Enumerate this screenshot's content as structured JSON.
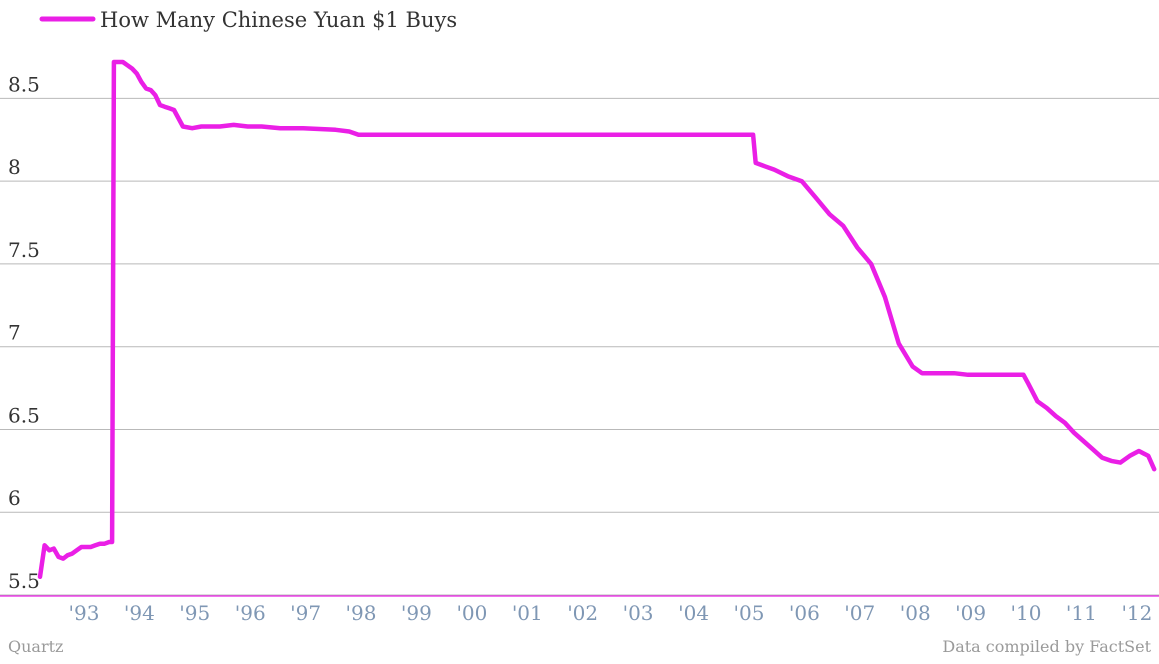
{
  "colors": {
    "series": "#ea1fe6",
    "grid": "#b9b9b9",
    "axis_line": "#ea1fe6",
    "ytick_text": "#333333",
    "xtick_text": "#7f97b4",
    "credit_text": "#9a9a9a"
  },
  "footer": {
    "left": "Quartz",
    "right": "Data compiled by FactSet"
  },
  "chart_data": {
    "type": "line",
    "title": "",
    "xlabel": "",
    "ylabel": "",
    "ylim": [
      5.5,
      8.75
    ],
    "xlim": [
      "1992-09-01",
      "2012-10-15"
    ],
    "grid": true,
    "legend_position": "top-left",
    "yticks": [
      5.5,
      6,
      6.5,
      7,
      7.5,
      8,
      8.5
    ],
    "ytick_labels": [
      "5.5",
      "6",
      "6.5",
      "7",
      "7.5",
      "8",
      "8.5"
    ],
    "xticks": [
      "1993-01-01",
      "1994-01-01",
      "1995-01-01",
      "1996-01-01",
      "1997-01-01",
      "1998-01-01",
      "1999-01-01",
      "2000-01-01",
      "2001-01-01",
      "2002-01-01",
      "2003-01-01",
      "2004-01-01",
      "2005-01-01",
      "2006-01-01",
      "2007-01-01",
      "2008-01-01",
      "2009-01-01",
      "2010-01-01",
      "2011-01-01",
      "2012-01-01"
    ],
    "xtick_labels": [
      "'93",
      "'94",
      "'95",
      "'96",
      "'97",
      "'98",
      "'99",
      "'00",
      "'01",
      "'02",
      "'03",
      "'04",
      "'05",
      "'06",
      "'07",
      "'08",
      "'09",
      "'10",
      "'11",
      "'12"
    ],
    "series": [
      {
        "name": "How Many Chinese Yuan $1 Buys",
        "x": [
          "1992-09-01",
          "1992-10-01",
          "1992-11-01",
          "1992-12-01",
          "1993-01-01",
          "1993-02-01",
          "1993-03-01",
          "1993-04-01",
          "1993-05-01",
          "1993-06-01",
          "1993-07-01",
          "1993-08-01",
          "1993-09-01",
          "1993-10-01",
          "1993-11-01",
          "1993-12-01",
          "1993-12-20",
          "1994-01-01",
          "1994-02-01",
          "1994-03-01",
          "1994-04-01",
          "1994-05-01",
          "1994-06-01",
          "1994-07-01",
          "1994-08-01",
          "1994-09-01",
          "1994-10-01",
          "1994-11-01",
          "1994-12-01",
          "1995-01-01",
          "1995-02-01",
          "1995-04-01",
          "1995-06-01",
          "1995-08-01",
          "1995-10-01",
          "1995-12-01",
          "1996-03-01",
          "1996-06-01",
          "1996-09-01",
          "1997-01-01",
          "1997-06-01",
          "1998-01-01",
          "1998-04-01",
          "1998-06-01",
          "1998-12-01",
          "2000-01-01",
          "2002-01-01",
          "2004-01-01",
          "2005-07-15",
          "2005-08-01",
          "2005-09-01",
          "2005-10-01",
          "2005-12-01",
          "2006-03-01",
          "2006-06-01",
          "2006-09-01",
          "2006-12-01",
          "2007-03-01",
          "2007-06-01",
          "2007-09-01",
          "2007-12-01",
          "2008-03-01",
          "2008-06-01",
          "2008-08-01",
          "2008-10-01",
          "2008-12-01",
          "2009-03-01",
          "2009-06-01",
          "2009-09-01",
          "2009-12-01",
          "2010-03-01",
          "2010-06-01",
          "2010-07-01",
          "2010-09-01",
          "2010-11-01",
          "2011-01-01",
          "2011-03-01",
          "2011-05-01",
          "2011-07-01",
          "2011-09-01",
          "2011-11-01",
          "2012-01-01",
          "2012-03-01",
          "2012-05-01",
          "2012-07-01",
          "2012-09-01",
          "2012-10-10"
        ],
        "y": [
          5.61,
          5.8,
          5.77,
          5.78,
          5.73,
          5.72,
          5.74,
          5.75,
          5.77,
          5.79,
          5.79,
          5.79,
          5.8,
          5.81,
          5.81,
          5.82,
          5.82,
          8.72,
          8.72,
          8.72,
          8.7,
          8.68,
          8.65,
          8.6,
          8.56,
          8.55,
          8.52,
          8.46,
          8.45,
          8.44,
          8.43,
          8.33,
          8.32,
          8.33,
          8.33,
          8.33,
          8.34,
          8.33,
          8.33,
          8.32,
          8.32,
          8.31,
          8.3,
          8.28,
          8.28,
          8.28,
          8.28,
          8.28,
          8.28,
          8.11,
          8.1,
          8.09,
          8.07,
          8.03,
          8.0,
          7.9,
          7.8,
          7.73,
          7.6,
          7.5,
          7.3,
          7.02,
          6.88,
          6.84,
          6.84,
          6.84,
          6.84,
          6.83,
          6.83,
          6.83,
          6.83,
          6.83,
          6.78,
          6.67,
          6.63,
          6.58,
          6.54,
          6.48,
          6.43,
          6.38,
          6.33,
          6.31,
          6.3,
          6.34,
          6.37,
          6.34,
          6.26
        ]
      }
    ]
  }
}
